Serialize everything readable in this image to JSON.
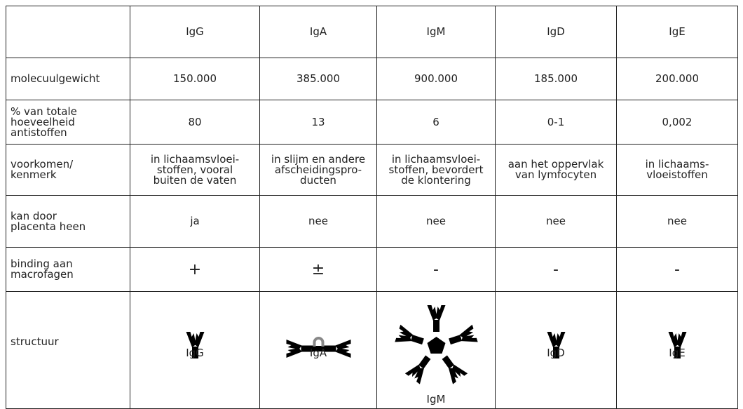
{
  "table": {
    "header": [
      "IgG",
      "IgA",
      "IgM",
      "IgD",
      "IgE"
    ],
    "rows": [
      {
        "label": "molecuulgewicht",
        "cells": [
          "150.000",
          "385.000",
          "900.000",
          "185.000",
          "200.000"
        ]
      },
      {
        "label": "% van totale\nhoeveelheid\nantistoffen",
        "cells": [
          "80",
          "13",
          "6",
          "0-1",
          "0,002"
        ]
      },
      {
        "label": "voorkomen/\nkenmerk",
        "cells": [
          "in lichaamsvloei-\nstoffen, vooral\nbuiten de vaten",
          "in slijm en andere\nafscheidingspro-\nducten",
          "in lichaamsvloei-\nstoffen, bevordert\nde klontering",
          "aan het oppervlak\nvan lymfocyten",
          "in lichaams-\nvloeistoffen"
        ]
      },
      {
        "label": "kan door\nplacenta heen",
        "cells": [
          "ja",
          "nee",
          "nee",
          "nee",
          "nee"
        ]
      },
      {
        "label": "binding aan\nmacrofagen",
        "cells": [
          "+",
          "±",
          "-",
          "-",
          "-"
        ]
      }
    ],
    "structure": {
      "label": "structuur",
      "names": [
        "IgG",
        "IgA",
        "IgM",
        "IgD",
        "IgE"
      ]
    }
  }
}
